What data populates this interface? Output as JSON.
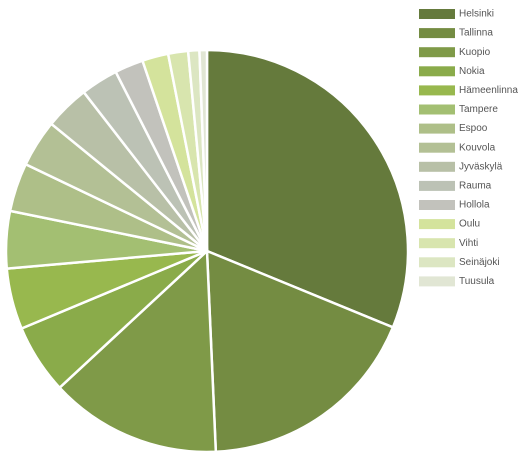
{
  "chart_data": {
    "type": "pie",
    "categories": [
      "Helsinki",
      "Tallinna",
      "Kuopio",
      "Nokia",
      "Hämeenlinna",
      "Tampere",
      "Espoo",
      "Kouvola",
      "Jyväskylä",
      "Rauma",
      "Hollola",
      "Oulu",
      "Vihti",
      "Seinäjoki",
      "Tuusula"
    ],
    "values": [
      31.2,
      18.1,
      13.8,
      5.6,
      4.9,
      4.6,
      3.9,
      3.8,
      3.6,
      3.0,
      2.3,
      2.1,
      1.6,
      0.9,
      0.6
    ],
    "colors": [
      "#657a3c",
      "#748c42",
      "#7f9a48",
      "#8aab4a",
      "#98b84e",
      "#a3bf72",
      "#aebf88",
      "#b3c095",
      "#b8c0a7",
      "#bcc2b5",
      "#c2c2bc",
      "#d4e39c",
      "#d8e5ae",
      "#dce6c2",
      "#e1e6d4"
    ],
    "legend": "right"
  }
}
